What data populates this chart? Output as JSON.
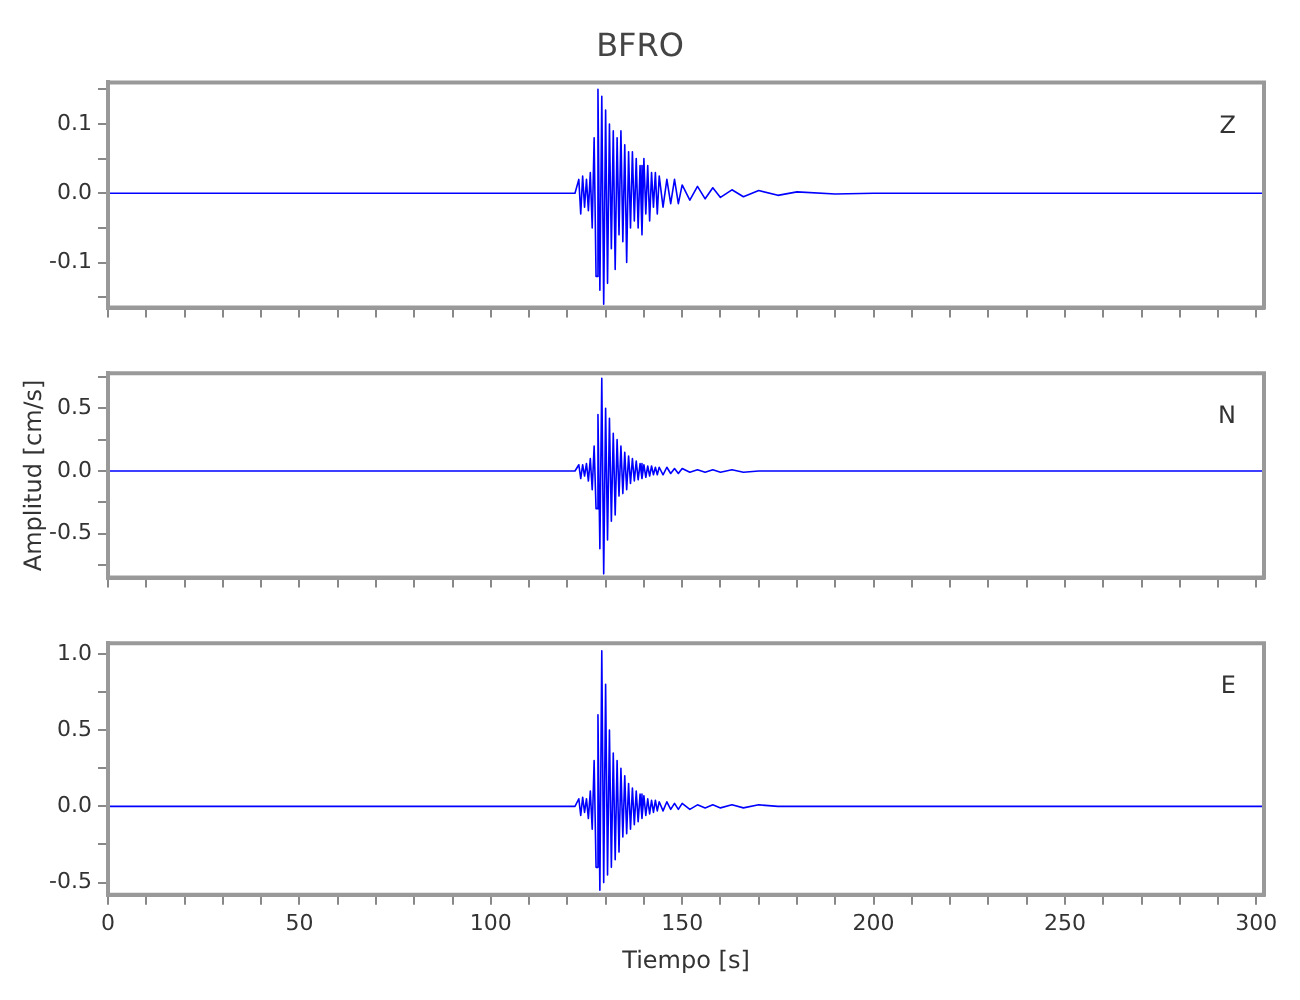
{
  "chart_data": [
    {
      "type": "line",
      "title": "BFRO",
      "annotations": [
        "Z"
      ],
      "tick_labels": "y",
      "x": [
        0,
        50,
        100,
        122,
        123,
        123.5,
        124,
        124.5,
        125,
        125.5,
        126,
        126.5,
        127,
        127.5,
        128,
        128.5,
        129,
        129.5,
        130,
        130.5,
        131,
        131.5,
        132,
        132.5,
        133,
        133.5,
        134,
        134.5,
        135,
        135.5,
        136,
        136.5,
        137,
        137.5,
        138,
        138.5,
        139,
        139.5,
        140,
        140.5,
        141,
        141.5,
        142,
        142.5,
        143,
        143.5,
        144,
        145,
        146,
        147,
        148,
        149,
        150,
        152,
        154,
        156,
        158,
        160,
        163,
        166,
        170,
        175,
        180,
        190,
        200,
        302
      ],
      "series": [
        {
          "color": "#0000ff",
          "values": [
            0,
            0,
            0,
            0,
            0.02,
            -0.03,
            0.025,
            -0.02,
            0.02,
            -0.025,
            0.03,
            -0.05,
            0.08,
            -0.12,
            0.15,
            -0.14,
            0.14,
            -0.16,
            0.12,
            -0.13,
            0.1,
            -0.08,
            0.09,
            -0.11,
            0.08,
            -0.06,
            0.09,
            -0.07,
            0.07,
            -0.1,
            0.06,
            -0.05,
            0.06,
            -0.04,
            0.05,
            -0.05,
            0.04,
            -0.06,
            0.05,
            -0.03,
            0.04,
            -0.04,
            0.03,
            -0.02,
            0.03,
            -0.03,
            0.025,
            -0.02,
            0.02,
            -0.015,
            0.02,
            -0.015,
            0.012,
            -0.01,
            0.01,
            -0.008,
            0.008,
            -0.006,
            0.005,
            -0.005,
            0.004,
            -0.003,
            0.002,
            -0.001,
            0,
            0
          ]
        }
      ],
      "xlim": [
        0,
        302
      ],
      "xticks": [
        0,
        {
          "value": 10,
          "label": null
        },
        {
          "value": 20,
          "label": null
        },
        {
          "value": 30,
          "label": null
        },
        {
          "value": 40,
          "label": null
        },
        50,
        {
          "value": 60,
          "label": null
        },
        {
          "value": 70,
          "label": null
        },
        {
          "value": 80,
          "label": null
        },
        {
          "value": 90,
          "label": null
        },
        100,
        {
          "value": 110,
          "label": null
        },
        {
          "value": 120,
          "label": null
        },
        {
          "value": 130,
          "label": null
        },
        {
          "value": 140,
          "label": null
        },
        150,
        {
          "value": 160,
          "label": null
        },
        {
          "value": 170,
          "label": null
        },
        {
          "value": 180,
          "label": null
        },
        {
          "value": 190,
          "label": null
        },
        200,
        {
          "value": 210,
          "label": null
        },
        {
          "value": 220,
          "label": null
        },
        {
          "value": 230,
          "label": null
        },
        {
          "value": 240,
          "label": null
        },
        250,
        {
          "value": 260,
          "label": null
        },
        {
          "value": 270,
          "label": null
        },
        {
          "value": 280,
          "label": null
        },
        {
          "value": 290,
          "label": null
        },
        300
      ],
      "ylim": [
        -0.165,
        0.16
      ],
      "yticks": [
        {
          "value": -0.15,
          "label": null
        },
        -0.1,
        {
          "value": -0.05,
          "label": null
        },
        {
          "value": 0,
          "label": "0.0"
        },
        {
          "value": 0.05,
          "label": null
        },
        0.1,
        {
          "value": 0.15,
          "label": null
        }
      ]
    },
    {
      "type": "line",
      "ylabel": "Amplitud [cm/s]",
      "annotations": [
        "N"
      ],
      "tick_labels": "y",
      "x": [
        0,
        50,
        100,
        122,
        123,
        123.5,
        124,
        124.5,
        125,
        125.5,
        126,
        126.5,
        127,
        127.5,
        128,
        128.5,
        129,
        129.5,
        130,
        130.5,
        131,
        131.5,
        132,
        132.5,
        133,
        133.5,
        134,
        134.5,
        135,
        135.5,
        136,
        136.5,
        137,
        137.5,
        138,
        138.5,
        139,
        139.5,
        140,
        140.5,
        141,
        141.5,
        142,
        142.5,
        143,
        143.5,
        144,
        145,
        146,
        147,
        148,
        149,
        150,
        152,
        154,
        156,
        158,
        160,
        163,
        166,
        170,
        175,
        180,
        190,
        200,
        302
      ],
      "series": [
        {
          "color": "#0000ff",
          "values": [
            0,
            0,
            0,
            0,
            0.05,
            -0.06,
            0.05,
            -0.04,
            0.06,
            -0.08,
            0.1,
            -0.15,
            0.2,
            -0.3,
            0.45,
            -0.62,
            0.74,
            -0.82,
            0.5,
            -0.55,
            0.42,
            -0.4,
            0.3,
            -0.35,
            0.25,
            -0.2,
            0.2,
            -0.18,
            0.15,
            -0.15,
            0.12,
            -0.1,
            0.1,
            -0.08,
            0.08,
            -0.07,
            0.06,
            -0.06,
            0.05,
            -0.05,
            0.04,
            -0.04,
            0.04,
            -0.03,
            0.03,
            -0.03,
            0.03,
            -0.03,
            0.03,
            -0.02,
            0.02,
            -0.02,
            0.02,
            -0.01,
            0.01,
            -0.01,
            0.01,
            -0.01,
            0.01,
            -0.01,
            0,
            0,
            0,
            0,
            0,
            0
          ]
        }
      ],
      "xlim": [
        0,
        302
      ],
      "xticks": [
        0,
        {
          "value": 10,
          "label": null
        },
        {
          "value": 20,
          "label": null
        },
        {
          "value": 30,
          "label": null
        },
        {
          "value": 40,
          "label": null
        },
        50,
        {
          "value": 60,
          "label": null
        },
        {
          "value": 70,
          "label": null
        },
        {
          "value": 80,
          "label": null
        },
        {
          "value": 90,
          "label": null
        },
        100,
        {
          "value": 110,
          "label": null
        },
        {
          "value": 120,
          "label": null
        },
        {
          "value": 130,
          "label": null
        },
        {
          "value": 140,
          "label": null
        },
        150,
        {
          "value": 160,
          "label": null
        },
        {
          "value": 170,
          "label": null
        },
        {
          "value": 180,
          "label": null
        },
        {
          "value": 190,
          "label": null
        },
        200,
        {
          "value": 210,
          "label": null
        },
        {
          "value": 220,
          "label": null
        },
        {
          "value": 230,
          "label": null
        },
        {
          "value": 240,
          "label": null
        },
        250,
        {
          "value": 260,
          "label": null
        },
        {
          "value": 270,
          "label": null
        },
        {
          "value": 280,
          "label": null
        },
        {
          "value": 290,
          "label": null
        },
        300
      ],
      "ylim": [
        -0.85,
        0.78
      ],
      "yticks": [
        {
          "value": -0.75,
          "label": null
        },
        -0.5,
        {
          "value": -0.25,
          "label": null
        },
        {
          "value": 0,
          "label": "0.0"
        },
        {
          "value": 0.25,
          "label": null
        },
        0.5,
        {
          "value": 0.75,
          "label": null
        }
      ]
    },
    {
      "type": "line",
      "xlabel": "Tiempo [s]",
      "annotations": [
        "E"
      ],
      "x": [
        0,
        50,
        100,
        122,
        123,
        123.5,
        124,
        124.5,
        125,
        125.5,
        126,
        126.5,
        127,
        127.5,
        128,
        128.5,
        129,
        129.5,
        130,
        130.5,
        131,
        131.5,
        132,
        132.5,
        133,
        133.5,
        134,
        134.5,
        135,
        135.5,
        136,
        136.5,
        137,
        137.5,
        138,
        138.5,
        139,
        139.5,
        140,
        140.5,
        141,
        141.5,
        142,
        142.5,
        143,
        143.5,
        144,
        145,
        146,
        147,
        148,
        149,
        150,
        152,
        154,
        156,
        158,
        160,
        163,
        166,
        170,
        175,
        180,
        190,
        200,
        302
      ],
      "series": [
        {
          "color": "#0000ff",
          "values": [
            0,
            0,
            0,
            0,
            0.05,
            -0.06,
            0.06,
            -0.04,
            0.05,
            -0.08,
            0.1,
            -0.15,
            0.3,
            -0.4,
            0.6,
            -0.55,
            1.02,
            -0.5,
            0.8,
            -0.45,
            0.5,
            -0.4,
            0.35,
            -0.35,
            0.3,
            -0.3,
            0.25,
            -0.2,
            0.2,
            -0.18,
            0.15,
            -0.15,
            0.12,
            -0.12,
            0.1,
            -0.1,
            0.08,
            -0.08,
            0.07,
            -0.06,
            0.05,
            -0.05,
            0.04,
            -0.04,
            0.04,
            -0.03,
            0.03,
            -0.03,
            0.03,
            -0.02,
            0.02,
            -0.02,
            0.02,
            -0.02,
            0.01,
            -0.01,
            0.01,
            -0.01,
            0.01,
            -0.01,
            0.01,
            0,
            0,
            0,
            0,
            0
          ]
        }
      ],
      "xlim": [
        0,
        302
      ],
      "xticks": [
        0,
        {
          "value": 10,
          "label": null
        },
        {
          "value": 20,
          "label": null
        },
        {
          "value": 30,
          "label": null
        },
        {
          "value": 40,
          "label": null
        },
        50,
        {
          "value": 60,
          "label": null
        },
        {
          "value": 70,
          "label": null
        },
        {
          "value": 80,
          "label": null
        },
        {
          "value": 90,
          "label": null
        },
        100,
        {
          "value": 110,
          "label": null
        },
        {
          "value": 120,
          "label": null
        },
        {
          "value": 130,
          "label": null
        },
        {
          "value": 140,
          "label": null
        },
        150,
        {
          "value": 160,
          "label": null
        },
        {
          "value": 170,
          "label": null
        },
        {
          "value": 180,
          "label": null
        },
        {
          "value": 190,
          "label": null
        },
        200,
        {
          "value": 210,
          "label": null
        },
        {
          "value": 220,
          "label": null
        },
        {
          "value": 230,
          "label": null
        },
        {
          "value": 240,
          "label": null
        },
        250,
        {
          "value": 260,
          "label": null
        },
        {
          "value": 270,
          "label": null
        },
        {
          "value": 280,
          "label": null
        },
        {
          "value": 290,
          "label": null
        },
        300
      ],
      "ylim": [
        -0.58,
        1.07
      ],
      "yticks": [
        -0.5,
        {
          "value": -0.25,
          "label": null
        },
        {
          "value": 0,
          "label": "0.0"
        },
        {
          "value": 0.25,
          "label": null
        },
        0.5,
        {
          "value": 0.75,
          "label": null
        },
        {
          "value": 1,
          "label": "1.0"
        }
      ]
    }
  ]
}
